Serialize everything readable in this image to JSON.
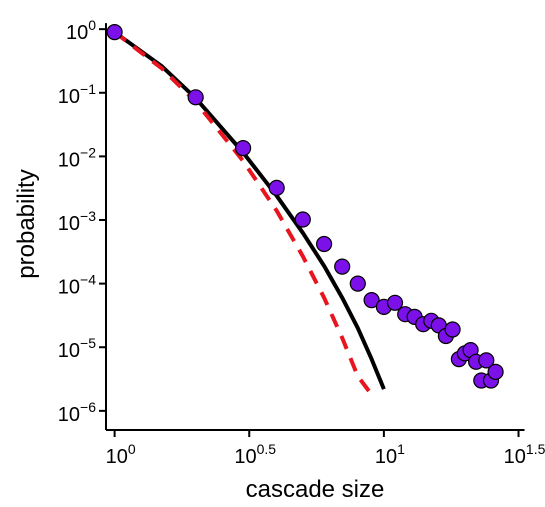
{
  "chart_data": {
    "type": "scatter",
    "xlabel": "cascade size",
    "ylabel": "probability",
    "x_scale": "log10",
    "y_scale": "log10",
    "xlim": [
      0.929,
      38.0
    ],
    "ylim": [
      5e-07,
      2.0
    ],
    "x_ticks": [
      {
        "value": 1,
        "base": "10",
        "exp": "0"
      },
      {
        "value": 3.1623,
        "base": "10",
        "exp": "0.5"
      },
      {
        "value": 10,
        "base": "10",
        "exp": "1"
      },
      {
        "value": 31.623,
        "base": "10",
        "exp": "1.5"
      }
    ],
    "y_ticks": [
      {
        "value": 1,
        "base": "10",
        "exp": "0"
      },
      {
        "value": 0.1,
        "base": "10",
        "exp": "−1"
      },
      {
        "value": 0.01,
        "base": "10",
        "exp": "−2"
      },
      {
        "value": 0.001,
        "base": "10",
        "exp": "−3"
      },
      {
        "value": 0.0001,
        "base": "10",
        "exp": "−4"
      },
      {
        "value": 1e-05,
        "base": "10",
        "exp": "−5"
      },
      {
        "value": 1e-06,
        "base": "10",
        "exp": "−6"
      }
    ],
    "grid": false,
    "legend": "none",
    "series": [
      {
        "kind": "points",
        "color": "#7B10E8",
        "edge_color": "#000000",
        "x": [
          1,
          2,
          3,
          4,
          5,
          6,
          7,
          8,
          9,
          10,
          11,
          12,
          13,
          14,
          15,
          16,
          17,
          18,
          19,
          20,
          21,
          22,
          23,
          24,
          25,
          26
        ],
        "y": [
          0.9,
          0.085,
          0.0135,
          0.0032,
          0.00102,
          0.00042,
          0.000185,
          0.0001,
          5.5e-05,
          4.3e-05,
          5e-05,
          3.3e-05,
          3e-05,
          2.3e-05,
          2.6e-05,
          2.2e-05,
          1.5e-05,
          1.9e-05,
          6.5e-06,
          8e-06,
          9e-06,
          5.9e-06,
          3e-06,
          6.2e-06,
          3e-06,
          4.1e-06
        ]
      },
      {
        "kind": "line",
        "style": "solid",
        "color": "#000000",
        "x": [
          1,
          1.5,
          2,
          3,
          4,
          5,
          6,
          7,
          8,
          9,
          10
        ],
        "y": [
          0.9,
          0.26,
          0.082,
          0.0115,
          0.0024,
          0.00063,
          0.00019,
          6e-05,
          2e-05,
          6.5e-06,
          2.2e-06
        ]
      },
      {
        "kind": "line",
        "style": "dashed",
        "color": "#E8141E",
        "x": [
          1,
          1.5,
          2,
          3,
          4,
          5,
          6,
          7,
          8,
          9
        ],
        "y": [
          0.9,
          0.24,
          0.072,
          0.0085,
          0.0014,
          0.00027,
          6e-05,
          1.4e-05,
          3.5e-06,
          1.8e-06
        ]
      }
    ]
  }
}
